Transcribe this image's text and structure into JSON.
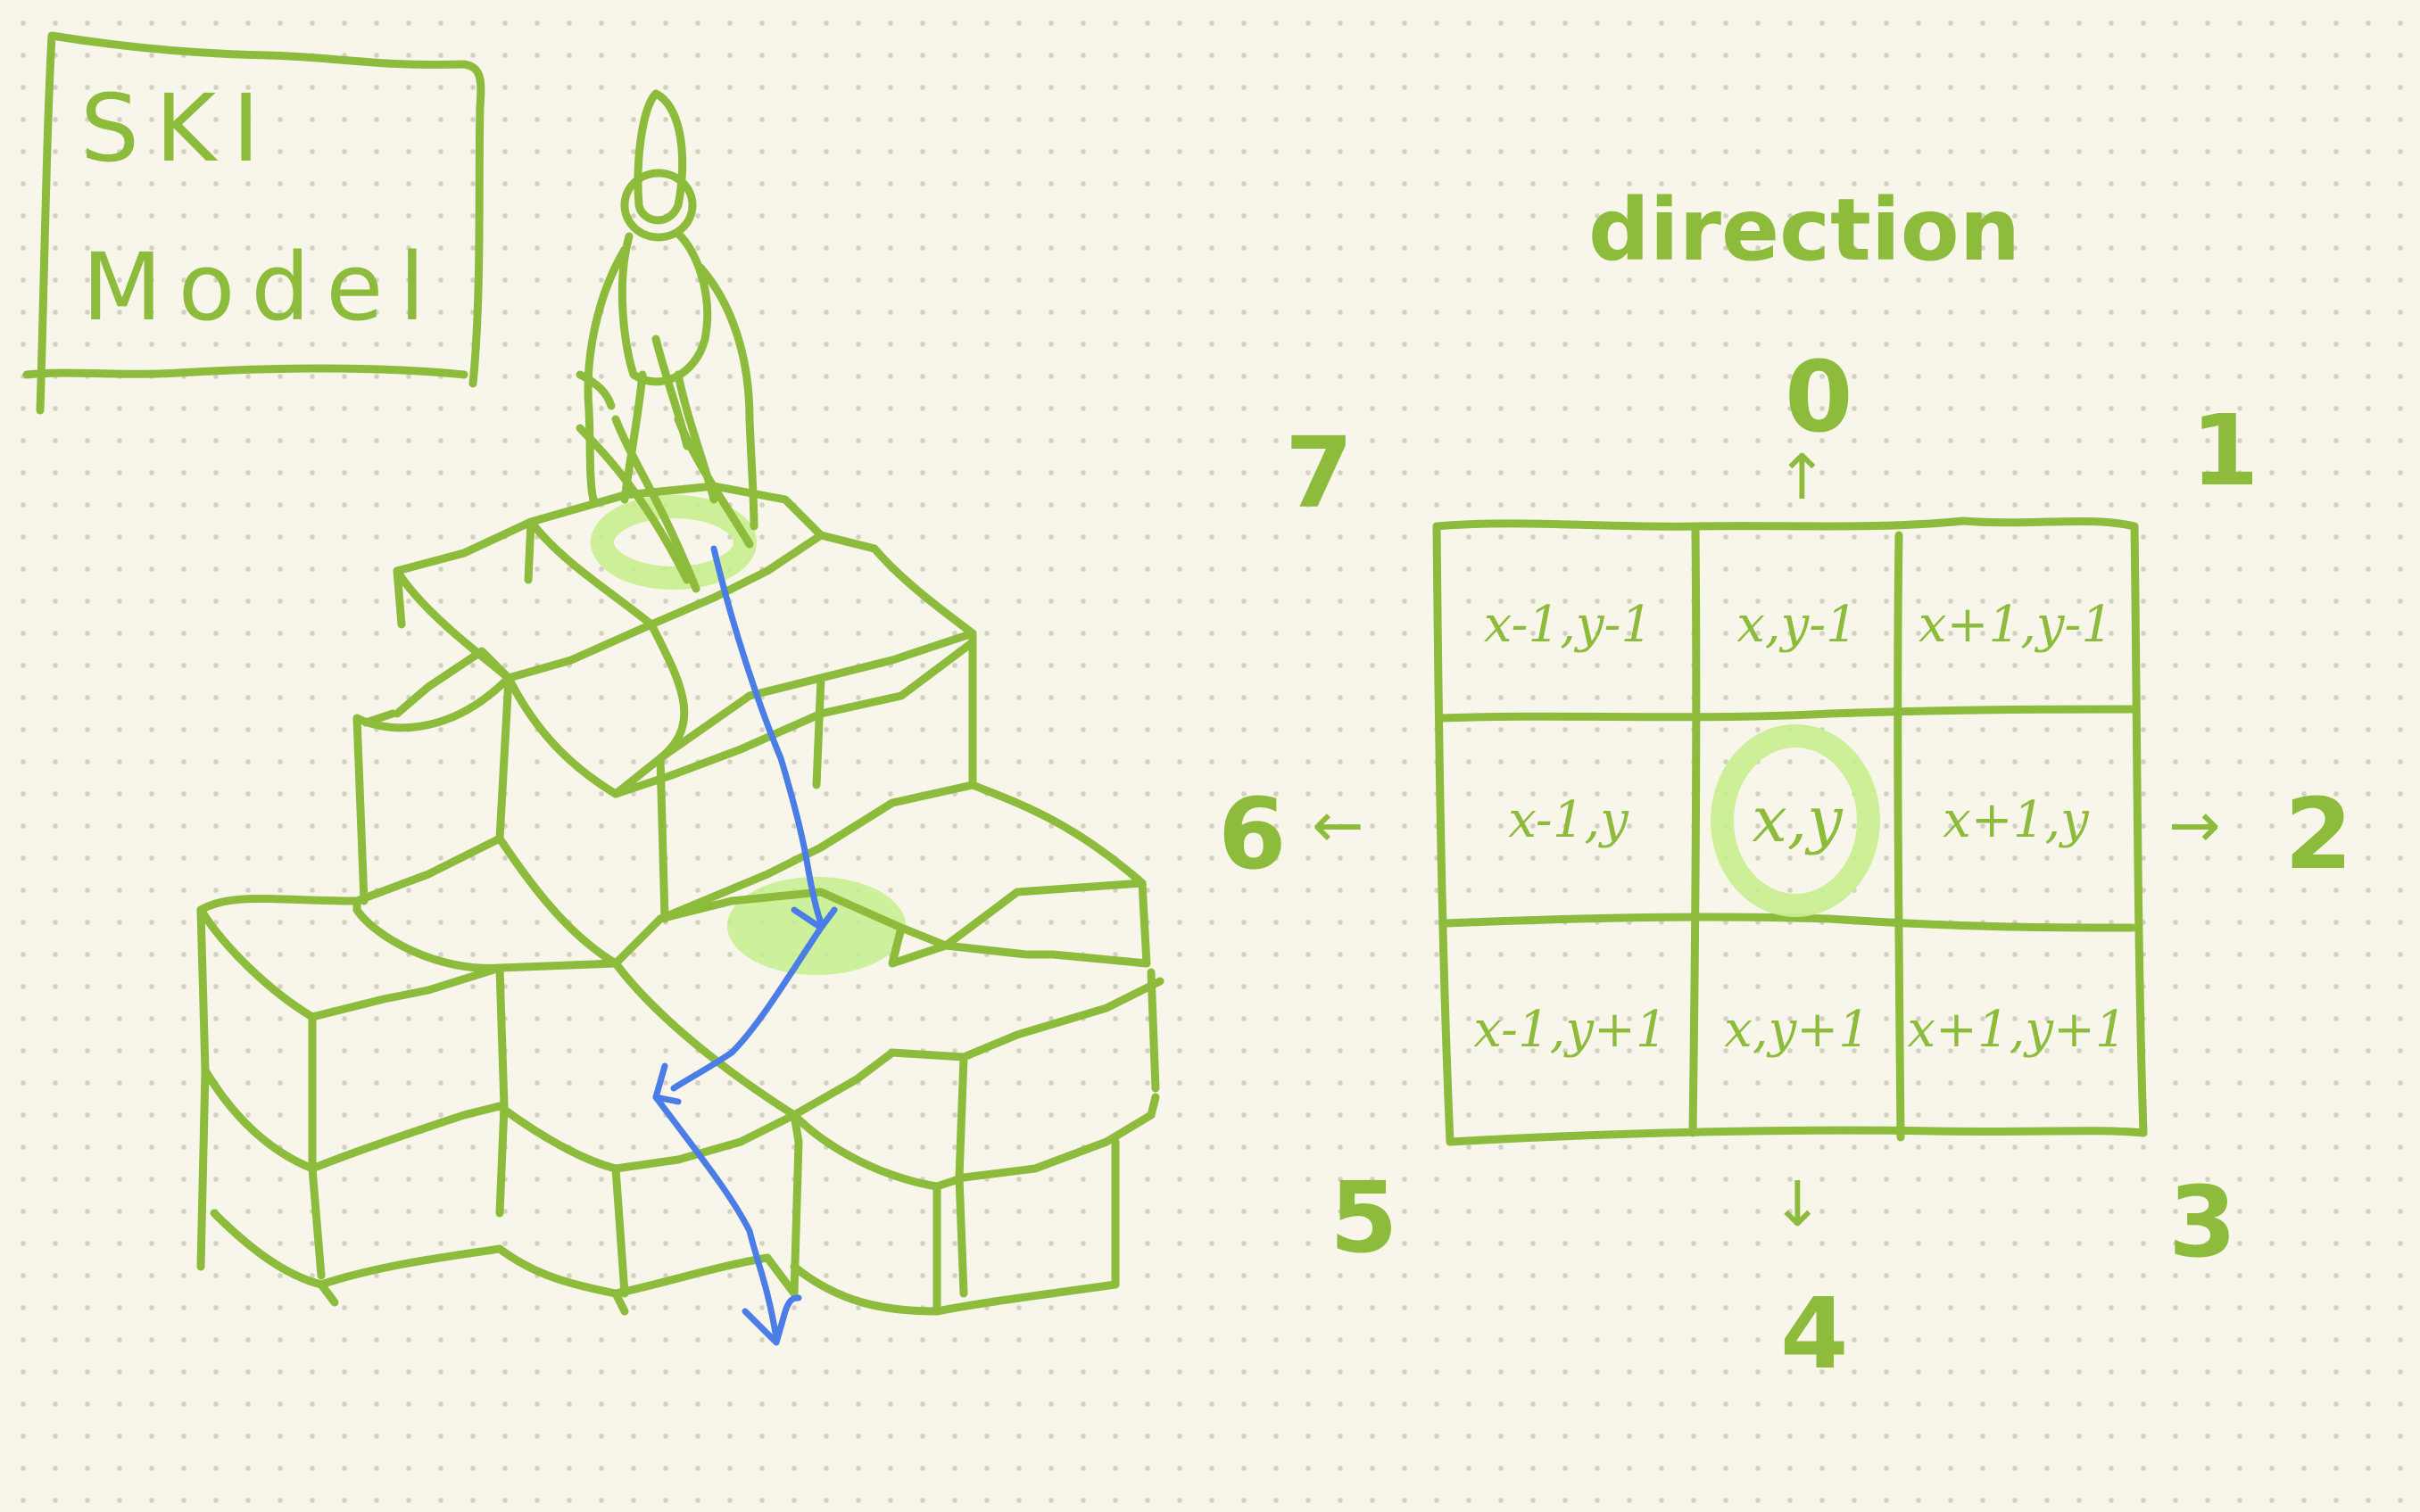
{
  "title": {
    "line1": "SKI",
    "line2": "Model"
  },
  "direction_heading": "direction",
  "directions": {
    "d0": "0",
    "d1": "1",
    "d2": "2",
    "d3": "3",
    "d4": "4",
    "d5": "5",
    "d6": "6",
    "d7": "7"
  },
  "arrows": {
    "up": "↑",
    "right": "→",
    "down": "↓",
    "left": "←"
  },
  "grid": {
    "rows": [
      [
        "x-1,y-1",
        "x,y-1",
        "x+1,y-1"
      ],
      [
        "x-1,y",
        "x,y",
        "x+1,y"
      ],
      [
        "x-1,y+1",
        "x,y+1",
        "x+1,y+1"
      ]
    ],
    "highlighted_cell": "x,y"
  },
  "colors": {
    "ink": "#8dbb3c",
    "highlight": "#c6ee8e",
    "path": "#4a7de6",
    "paper": "#f8f6ea"
  }
}
